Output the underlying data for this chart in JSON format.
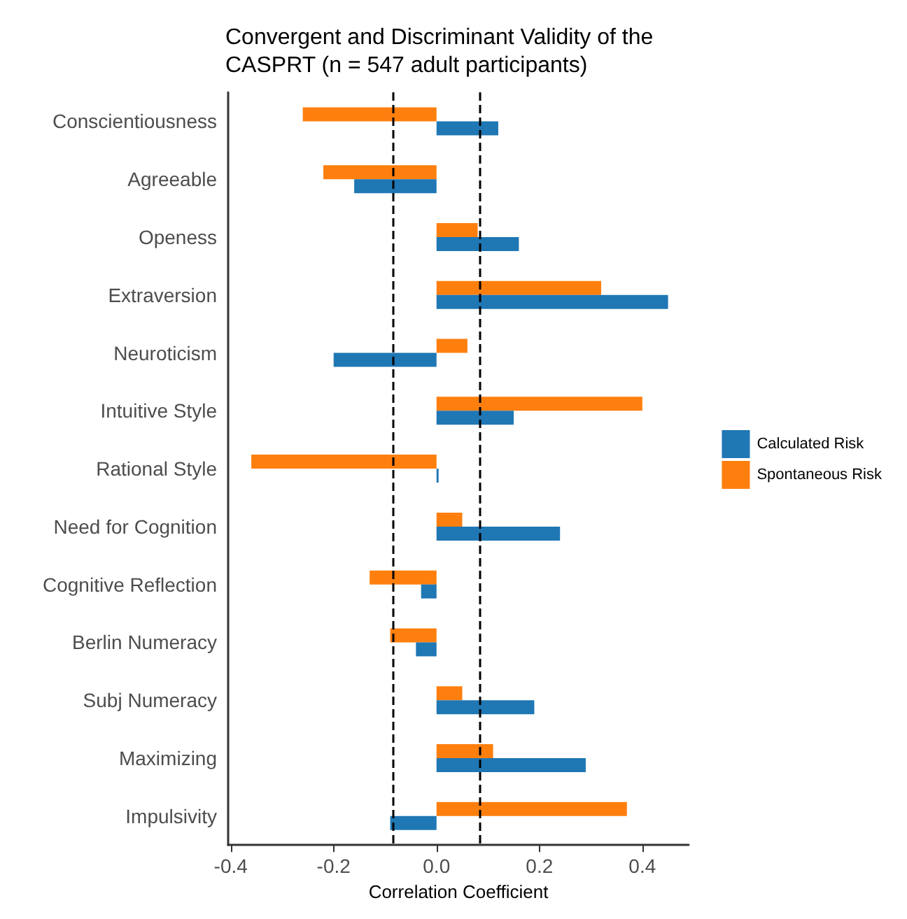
{
  "chart_data": {
    "type": "bar",
    "orientation": "horizontal",
    "title": "Convergent and Discriminant Validity of the\nCASPRT (n = 547 adult participants)",
    "xlabel": "Correlation Coefficient",
    "categories": [
      "Conscientiousness",
      "Agreeable",
      "Openess",
      "Extraversion",
      "Neuroticism",
      "Intuitive Style",
      "Rational Style",
      "Need for Cognition",
      "Cognitive Reflection",
      "Berlin Numeracy",
      "Subj Numeracy",
      "Maximizing",
      "Impulsivity"
    ],
    "series": [
      {
        "name": "Spontaneous Risk",
        "color": "#ff7f0e",
        "values": [
          -0.26,
          -0.22,
          0.08,
          0.32,
          0.06,
          0.4,
          -0.36,
          0.05,
          -0.13,
          -0.09,
          0.05,
          0.11,
          0.37
        ]
      },
      {
        "name": "Calculated Risk",
        "color": "#1f77b4",
        "values": [
          0.12,
          -0.16,
          0.16,
          0.45,
          -0.2,
          0.15,
          0.004,
          0.24,
          -0.03,
          -0.04,
          0.19,
          0.29,
          -0.09
        ]
      }
    ],
    "xlim": [
      -0.405,
      0.49
    ],
    "xticks": [
      -0.4,
      -0.2,
      {
        "value": 0,
        "label": "0.0"
      },
      0.2,
      0.4
    ],
    "ref_lines": [
      {
        "axis": "x",
        "value": -0.084,
        "line_style": "dashed",
        "color": "#000000"
      },
      {
        "axis": "x",
        "value": 0.084,
        "line_style": "dashed",
        "color": "#000000"
      }
    ],
    "grid": false,
    "legend": "right"
  }
}
